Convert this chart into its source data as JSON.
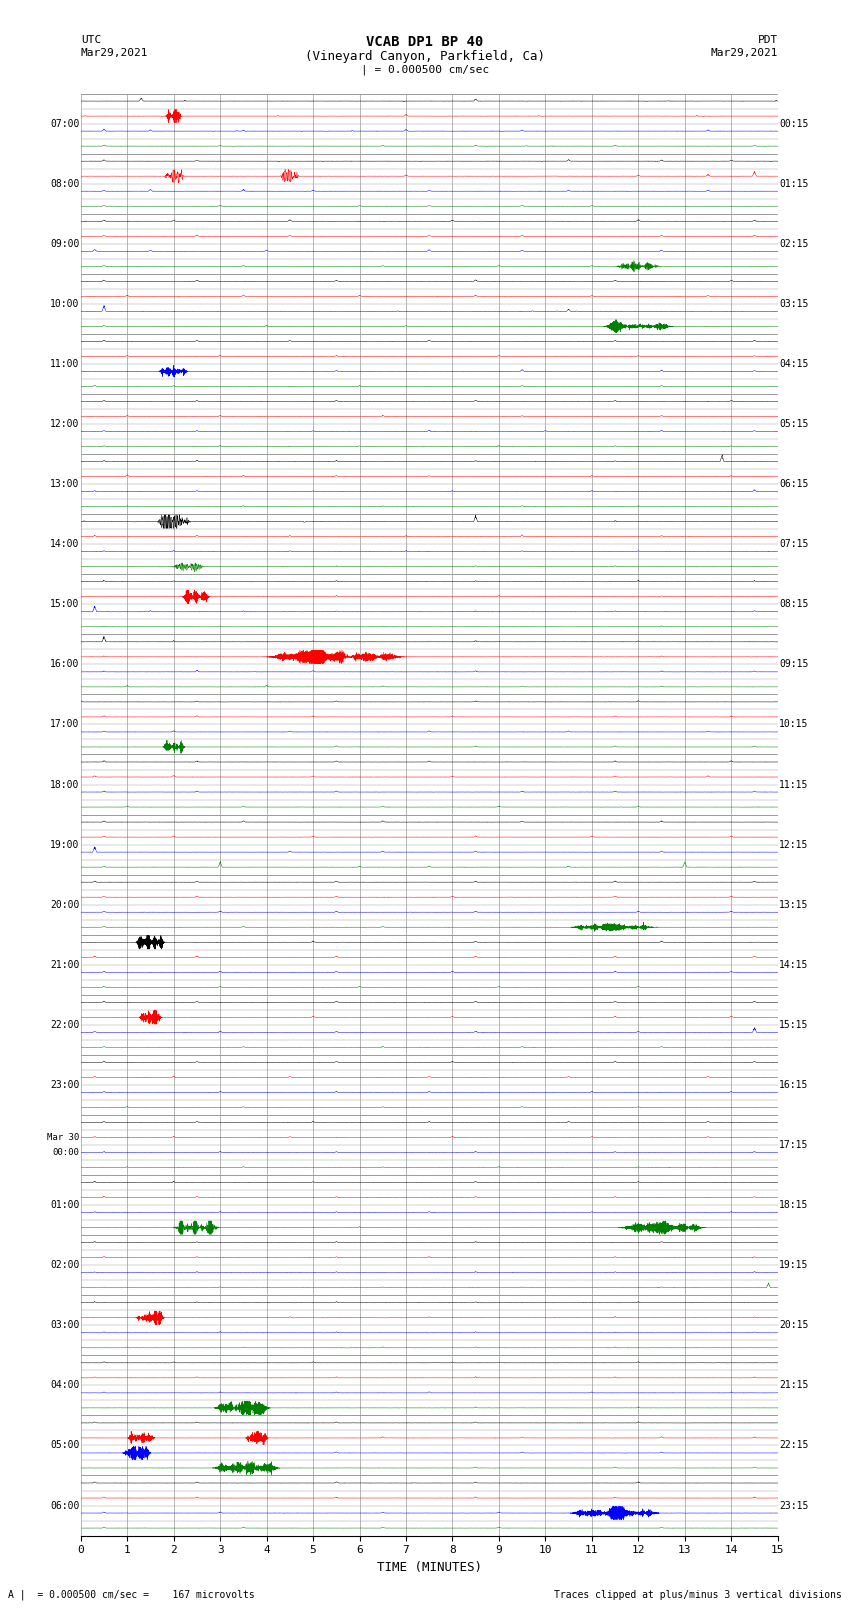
{
  "title_line1": "VCAB DP1 BP 40",
  "title_line2": "(Vineyard Canyon, Parkfield, Ca)",
  "scale_text": "| = 0.000500 cm/sec",
  "utc_label": "UTC",
  "pdt_label": "PDT",
  "date_left": "Mar29,2021",
  "date_right": "Mar29,2021",
  "xlabel": "TIME (MINUTES)",
  "bottom_left": "A |  = 0.000500 cm/sec =    167 microvolts",
  "bottom_right": "Traces clipped at plus/minus 3 vertical divisions",
  "bg_color": "#ffffff",
  "grid_color": "#999999",
  "trace_colors": [
    "black",
    "red",
    "blue",
    "green"
  ],
  "num_rows": 24,
  "row_labels_left": [
    "07:00",
    "08:00",
    "09:00",
    "10:00",
    "11:00",
    "12:00",
    "13:00",
    "14:00",
    "15:00",
    "16:00",
    "17:00",
    "18:00",
    "19:00",
    "20:00",
    "21:00",
    "22:00",
    "23:00",
    "Mar 30\n00:00",
    "01:00",
    "02:00",
    "03:00",
    "04:00",
    "05:00",
    "06:00"
  ],
  "row_labels_right": [
    "00:15",
    "01:15",
    "02:15",
    "03:15",
    "04:15",
    "05:15",
    "06:15",
    "07:15",
    "08:15",
    "09:15",
    "10:15",
    "11:15",
    "12:15",
    "13:15",
    "14:15",
    "15:15",
    "16:15",
    "17:15",
    "18:15",
    "19:15",
    "20:15",
    "21:15",
    "22:15",
    "23:15"
  ],
  "xmin": 0,
  "xmax": 15,
  "xticks": [
    0,
    1,
    2,
    3,
    4,
    5,
    6,
    7,
    8,
    9,
    10,
    11,
    12,
    13,
    14,
    15
  ],
  "figwidth": 8.5,
  "figheight": 16.13
}
